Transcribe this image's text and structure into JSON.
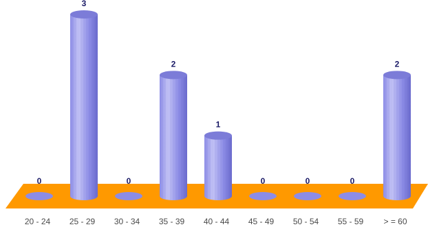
{
  "chart_data": {
    "type": "bar",
    "style": "3d-cylinder",
    "categories": [
      "20 - 24",
      "25 - 29",
      "30 - 34",
      "35 - 39",
      "40 - 44",
      "45 - 49",
      "50 - 54",
      "55 - 59",
      "> = 60"
    ],
    "values": [
      0,
      3,
      0,
      2,
      1,
      0,
      0,
      0,
      2
    ],
    "data_labels": [
      "0",
      "3",
      "0",
      "2",
      "1",
      "0",
      "0",
      "0",
      "2"
    ],
    "title": "",
    "xlabel": "",
    "ylabel": "",
    "ylim": [
      0,
      3
    ],
    "grid": false,
    "legend": "none",
    "colors": {
      "bar": "#8c8ce6",
      "bar_highlight": "#c4c4f6",
      "bar_shadow": "#6a6acc",
      "bar_top": "#7c7cd8",
      "floor": "#ff9900",
      "data_label": "#1a1a66",
      "tick_label": "#4a4a4a"
    }
  }
}
